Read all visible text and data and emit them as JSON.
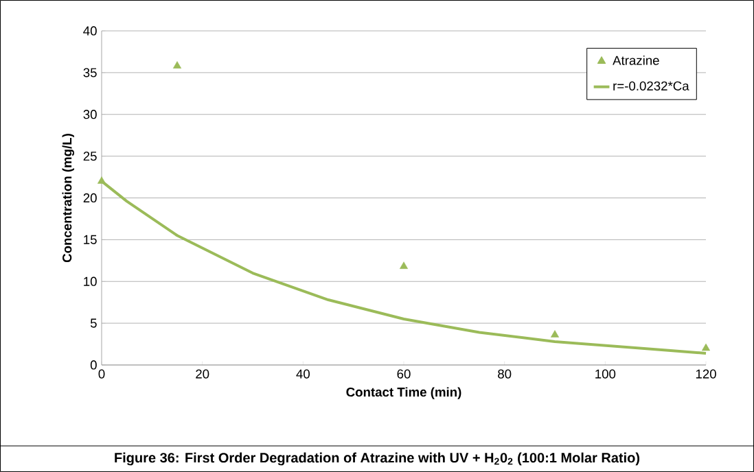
{
  "chart_data": {
    "type": "scatter",
    "xlabel": "Contact Time (min)",
    "ylabel": "Concentration (mg/L)",
    "annotations": [
      "Figure 36: First Order Degradation of Atrazine with UV + H$_{2}$0$_{2}$ (100:1 Molar Ratio)"
    ],
    "xlim": [
      0,
      120
    ],
    "xticks": [
      0,
      20,
      40,
      60,
      80,
      100,
      120
    ],
    "ylim": [
      0,
      40
    ],
    "yticks": [
      0,
      5,
      10,
      15,
      20,
      25,
      30,
      35,
      40
    ],
    "grid": "y",
    "legend": "top right",
    "series": [
      {
        "name": "Atrazine",
        "type": "scatter",
        "marker": "triangle",
        "color": "#9bbb59",
        "x": [
          0,
          15,
          60,
          90,
          120
        ],
        "values": [
          22.0,
          35.8,
          11.8,
          3.6,
          2.0
        ]
      },
      {
        "name": "r=-0.0232*Ca",
        "type": "line",
        "marker": "none",
        "color": "#9bbb59",
        "x": [
          0,
          5,
          15,
          30,
          45,
          60,
          75,
          90,
          120
        ],
        "values": [
          22.0,
          19.6,
          15.5,
          11.0,
          7.8,
          5.5,
          3.9,
          2.8,
          1.4
        ]
      }
    ]
  }
}
